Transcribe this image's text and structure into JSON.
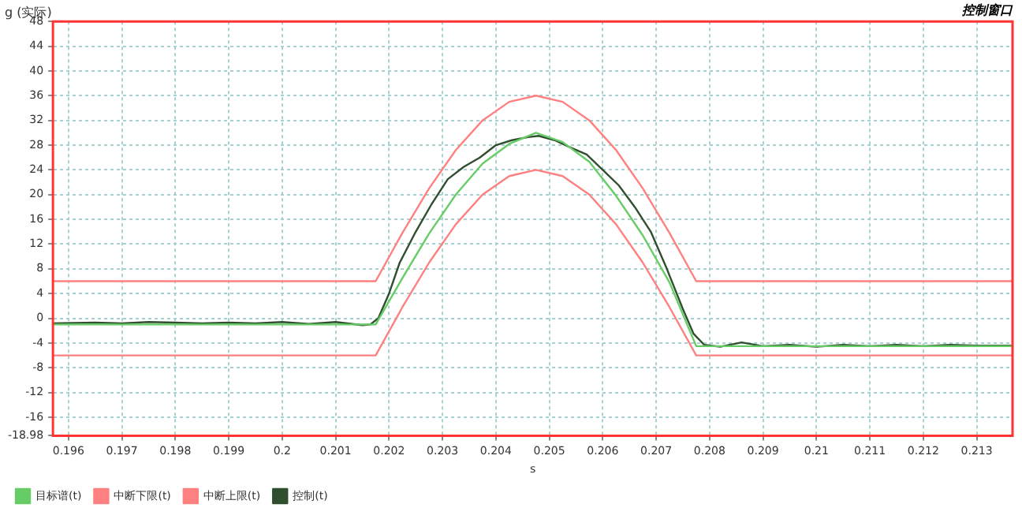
{
  "chart_data": {
    "type": "line",
    "title": "控制窗口",
    "xlabel": "s",
    "ylabel": "g (实际)",
    "xlim": [
      0.19571,
      0.21367
    ],
    "xticks": [
      0.196,
      0.197,
      0.198,
      0.199,
      0.2,
      0.201,
      0.202,
      0.203,
      0.204,
      0.205,
      0.206,
      0.207,
      0.208,
      0.209,
      0.21,
      0.211,
      0.212,
      0.213
    ],
    "ylim": [
      -18.98,
      48
    ],
    "yticks": [
      -18.98,
      -16,
      -12,
      -8,
      -4,
      0,
      4,
      8,
      12,
      16,
      20,
      24,
      28,
      32,
      36,
      40,
      44,
      48
    ],
    "grid": true,
    "legend": "bottom left",
    "marker": "none",
    "line_style": "solid",
    "series": [
      {
        "name": "目标谱(t)",
        "color": "#66cc66",
        "x": [
          0.19571,
          0.20175,
          0.20225,
          0.20275,
          0.20325,
          0.20375,
          0.20425,
          0.20475,
          0.20525,
          0.20575,
          0.20625,
          0.20675,
          0.20725,
          0.20775,
          0.21367
        ],
        "values": [
          -1,
          -1,
          6.5,
          13.7,
          20,
          25,
          28.2,
          30,
          28.5,
          25.3,
          19.8,
          13.4,
          5.8,
          -4.5,
          -4.5
        ]
      },
      {
        "name": "中断下限(t)",
        "color": "#ff8080",
        "x": [
          0.19571,
          0.20175,
          0.20225,
          0.20275,
          0.20325,
          0.20375,
          0.20425,
          0.20475,
          0.20525,
          0.20575,
          0.20625,
          0.20675,
          0.20725,
          0.20775,
          0.21367
        ],
        "values": [
          -6,
          -6,
          1.8,
          9,
          15.2,
          20,
          23,
          24,
          23,
          20,
          15.2,
          9,
          1.8,
          -6,
          -6
        ]
      },
      {
        "name": "中断上限(t)",
        "color": "#ff8080",
        "x": [
          0.19571,
          0.20175,
          0.20225,
          0.20275,
          0.20325,
          0.20375,
          0.20425,
          0.20475,
          0.20525,
          0.20575,
          0.20625,
          0.20675,
          0.20725,
          0.20775,
          0.21367
        ],
        "values": [
          6,
          6,
          13.8,
          21,
          27.2,
          32,
          35,
          36,
          35,
          32,
          27.2,
          21,
          13.8,
          6,
          6
        ]
      },
      {
        "name": "控制(t)",
        "color": "#2f4f2f",
        "x": [
          0.19571,
          0.1965,
          0.197,
          0.1975,
          0.198,
          0.1985,
          0.199,
          0.1995,
          0.2,
          0.2005,
          0.201,
          0.2015,
          0.20165,
          0.2018,
          0.202,
          0.2022,
          0.2025,
          0.2028,
          0.2031,
          0.2034,
          0.2037,
          0.204,
          0.2043,
          0.2046,
          0.2048,
          0.2051,
          0.2054,
          0.2057,
          0.206,
          0.2063,
          0.2066,
          0.2069,
          0.2072,
          0.2075,
          0.2077,
          0.2079,
          0.2082,
          0.2086,
          0.209,
          0.2095,
          0.21,
          0.2105,
          0.211,
          0.2115,
          0.212,
          0.2125,
          0.213,
          0.21367
        ],
        "values": [
          -0.8,
          -0.7,
          -0.8,
          -0.6,
          -0.7,
          -0.8,
          -0.7,
          -0.8,
          -0.6,
          -0.9,
          -0.6,
          -1.1,
          -1,
          0,
          4,
          9,
          14,
          18.5,
          22.5,
          24.5,
          26,
          28,
          28.8,
          29.3,
          29.5,
          28.8,
          27.6,
          26.5,
          24,
          21.5,
          18,
          14,
          8,
          1.5,
          -2.5,
          -4.3,
          -4.6,
          -3.9,
          -4.5,
          -4.3,
          -4.6,
          -4.3,
          -4.5,
          -4.3,
          -4.5,
          -4.3,
          -4.4,
          -4.4
        ]
      }
    ]
  }
}
